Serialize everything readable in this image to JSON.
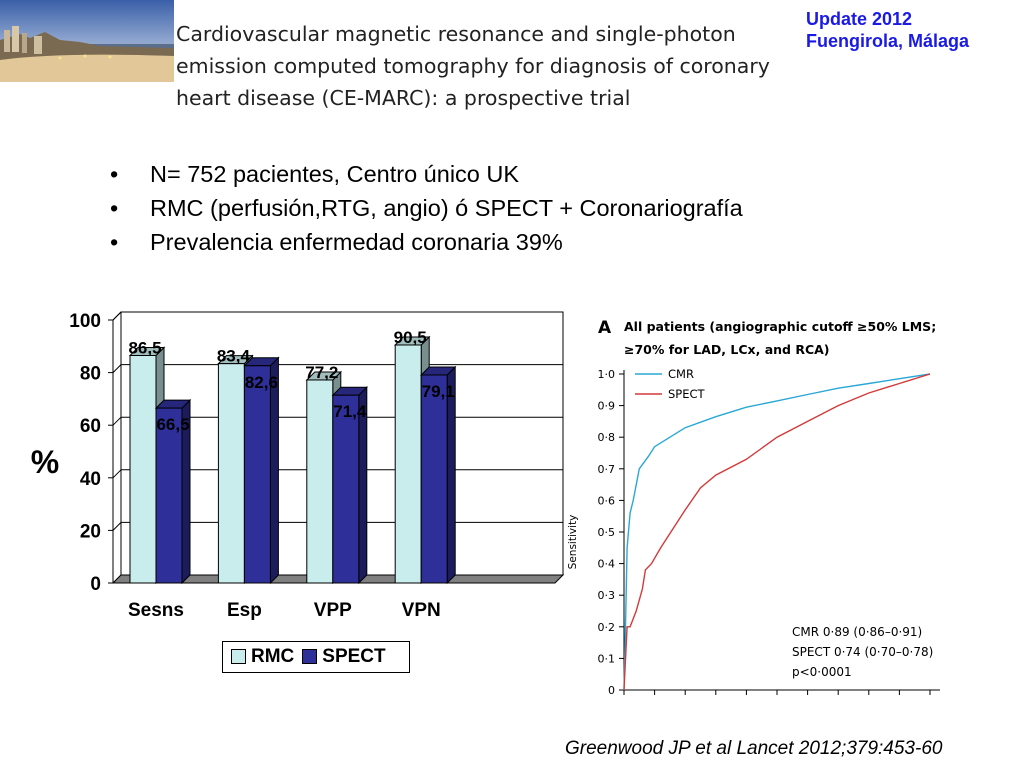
{
  "header": {
    "title_lines": [
      "Cardiovascular magnetic resonance and single-photon",
      "emission computed tomography for diagnosis of coronary",
      "heart disease (CE-MARC): a prospective trial"
    ],
    "tag_lines": [
      "Update 2012",
      "Fuengirola, Málaga"
    ],
    "tag_color": "#1a1ae6"
  },
  "bullets": [
    "N= 752 pacientes, Centro único UK",
    "RMC (perfusión,RTG, angio) ó SPECT + Coronariografía",
    "Prevalencia enfermedad coronaria 39%"
  ],
  "bullet_mark": "•",
  "citation": "Greenwood JP et al Lancet 2012;379:453-60",
  "chart_data": [
    {
      "type": "bar",
      "categories": [
        "Sesns",
        "Esp",
        "VPP",
        "VPN"
      ],
      "series": [
        {
          "name": "RMC",
          "values": [
            86.5,
            83.4,
            77.2,
            90.5
          ],
          "labels": [
            "86,5",
            "83,4",
            "77,2",
            "90,5"
          ],
          "color": "#c9ecec"
        },
        {
          "name": "SPECT",
          "values": [
            66.5,
            82.6,
            71.4,
            79.1
          ],
          "labels": [
            "66,5",
            "82,6",
            "71,4",
            "79,1"
          ],
          "color": "#2f2f9a"
        }
      ],
      "ylabel": "%",
      "ylim": [
        0,
        100
      ],
      "yticks": [
        "0",
        "20",
        "40",
        "60",
        "80",
        "100"
      ],
      "grid": true,
      "legend": "bottom"
    },
    {
      "type": "line",
      "panel_letter": "A",
      "title_lines": [
        "All patients (angiographic cutoff ≥50% LMS;",
        "≥70% for LAD, LCx, and RCA)"
      ],
      "ylabel": "Sensitivity",
      "ylim": [
        0,
        1
      ],
      "yticks": [
        "0",
        "0·1",
        "0·2",
        "0·3",
        "0·4",
        "0·5",
        "0·6",
        "0·7",
        "0·8",
        "0·9",
        "1·0"
      ],
      "xlim": [
        0,
        1
      ],
      "series": [
        {
          "name": "CMR",
          "color": "#2aa7d6",
          "x": [
            0,
            0.005,
            0.01,
            0.02,
            0.03,
            0.05,
            0.08,
            0.1,
            0.15,
            0.2,
            0.3,
            0.4,
            0.5,
            0.6,
            0.7,
            0.8,
            0.9,
            1.0
          ],
          "y": [
            0,
            0.2,
            0.45,
            0.56,
            0.6,
            0.7,
            0.74,
            0.77,
            0.8,
            0.83,
            0.865,
            0.895,
            0.915,
            0.935,
            0.955,
            0.97,
            0.985,
            1.0
          ]
        },
        {
          "name": "SPECT",
          "color": "#d23a3a",
          "x": [
            0,
            0.01,
            0.02,
            0.04,
            0.06,
            0.07,
            0.09,
            0.12,
            0.16,
            0.2,
            0.25,
            0.3,
            0.4,
            0.5,
            0.6,
            0.7,
            0.8,
            0.9,
            1.0
          ],
          "y": [
            0,
            0.2,
            0.2,
            0.25,
            0.32,
            0.38,
            0.4,
            0.45,
            0.51,
            0.57,
            0.64,
            0.68,
            0.73,
            0.8,
            0.85,
            0.9,
            0.94,
            0.97,
            1.0
          ]
        }
      ],
      "annotations": [
        "CMR 0·89 (0·86–0·91)",
        "SPECT 0·74 (0·70–0·78)",
        "p<0·0001"
      ]
    }
  ]
}
